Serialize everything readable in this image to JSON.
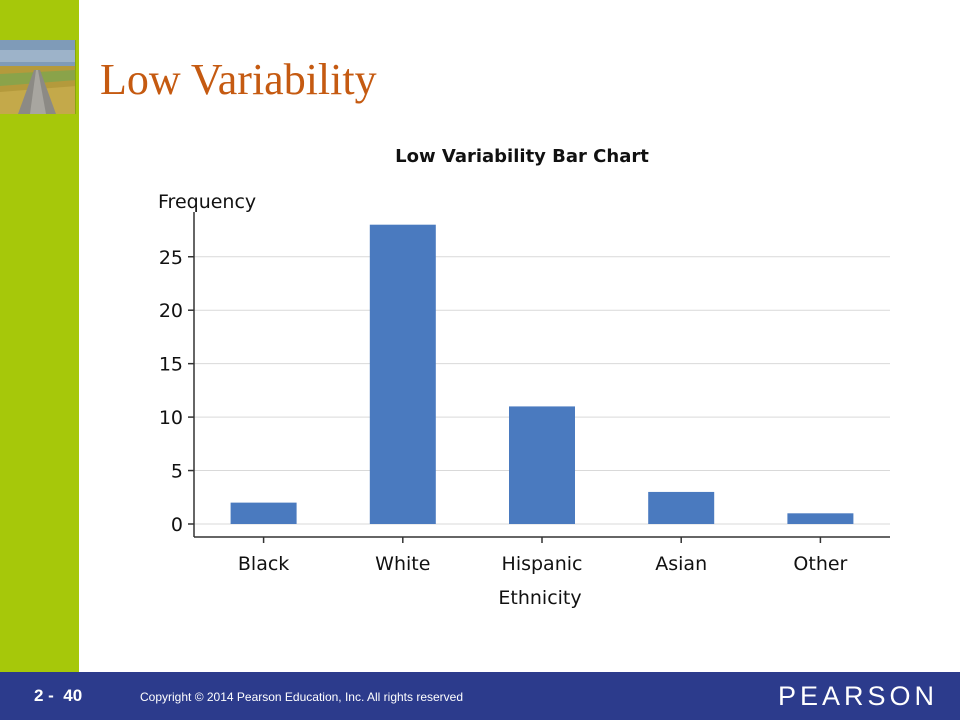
{
  "slide": {
    "title": "Low Variability",
    "number": "2 -  40",
    "copyright": "Copyright © 2014 Pearson Education, Inc.  All rights reserved",
    "brand": "PEARSON"
  },
  "colors": {
    "sidebar": "#a6c80a",
    "title": "#c55a11",
    "footer": "#2c3b8c",
    "bar": "#4a7abf"
  },
  "chart_data": {
    "type": "bar",
    "title": "Low Variability Bar Chart",
    "xlabel": "Ethnicity",
    "ylabel": "Frequency",
    "categories": [
      "Black",
      "White",
      "Hispanic",
      "Asian",
      "Other"
    ],
    "values": [
      2,
      28,
      11,
      3,
      1
    ],
    "ylim": [
      0,
      29
    ],
    "yticks": [
      0,
      5,
      10,
      15,
      20,
      25
    ],
    "grid": true,
    "legend": "none"
  }
}
